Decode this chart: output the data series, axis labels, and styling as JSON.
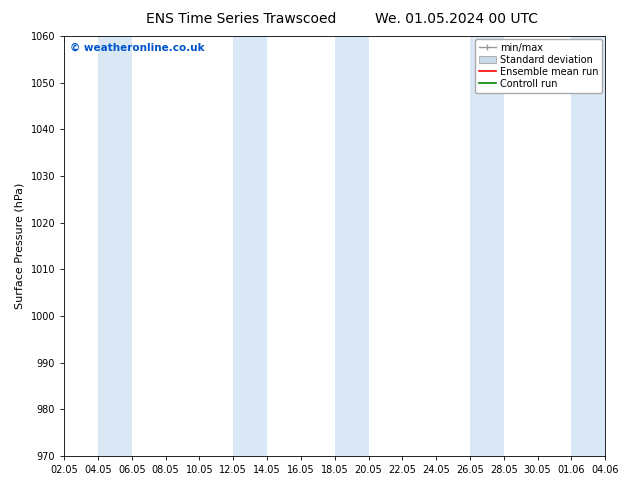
{
  "title_left": "ENS Time Series Trawscoed",
  "title_right": "We. 01.05.2024 00 UTC",
  "ylabel": "Surface Pressure (hPa)",
  "ylim": [
    970,
    1060
  ],
  "yticks": [
    970,
    980,
    990,
    1000,
    1010,
    1020,
    1030,
    1040,
    1050,
    1060
  ],
  "xtick_labels": [
    "02.05",
    "04.05",
    "06.05",
    "08.05",
    "10.05",
    "12.05",
    "14.05",
    "16.05",
    "18.05",
    "20.05",
    "22.05",
    "24.05",
    "26.05",
    "28.05",
    "30.05",
    "01.06",
    "04.06"
  ],
  "band_color": "#dae8f5",
  "band_alpha": 1.0,
  "bg_color": "#ffffff",
  "copyright_text": "© weatheronline.co.uk",
  "copyright_color": "#0055cc",
  "figsize": [
    6.34,
    4.9
  ],
  "dpi": 100,
  "title_fontsize": 10,
  "ylabel_fontsize": 8,
  "tick_fontsize": 7,
  "legend_fontsize": 7
}
